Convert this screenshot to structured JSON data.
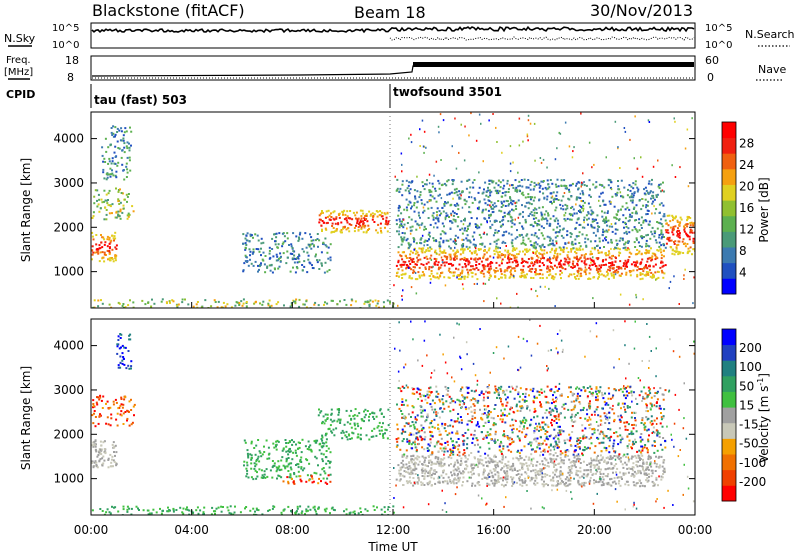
{
  "header": {
    "station": "Blackstone (fitACF)",
    "beam": "Beam 18",
    "date": "30/Nov/2013"
  },
  "strip_labels": {
    "nsky": "N.Sky",
    "nsky_ticks": [
      "10^5",
      "10^0"
    ],
    "nsearch": "N.Search",
    "nsearch_ticks": [
      "10^5",
      "10^0"
    ],
    "freq": "Freq.",
    "freq_unit": "[MHz]",
    "freq_ticks": [
      "18",
      "8"
    ],
    "nave": "Nave",
    "nave_ticks": [
      "60",
      "0"
    ],
    "cpid": "CPID",
    "cpid_segments": [
      {
        "label": "tau (fast) 503",
        "start_hour": 0
      },
      {
        "label": "twofsound 3501",
        "start_hour": 12
      }
    ]
  },
  "chart_data": [
    {
      "type": "heatmap",
      "panel": "power",
      "ylabel": "Slant Range [km]",
      "xlabel": "",
      "ylim": [
        180,
        4600
      ],
      "xlim": [
        0,
        24
      ],
      "y_ticks": [
        "4000",
        "3000",
        "2000",
        "1000"
      ],
      "y_tick_values": [
        4000,
        3000,
        2000,
        1000
      ],
      "colorbar_label": "Power [dB]",
      "colorbar_ticks": [
        "28",
        "24",
        "20",
        "16",
        "12",
        "8",
        "4"
      ],
      "colorbar_values": [
        28,
        24,
        20,
        16,
        12,
        8,
        4
      ],
      "colorscale": [
        "#0000ff",
        "#2050c0",
        "#3c7ab0",
        "#4a9a78",
        "#5cb050",
        "#90c030",
        "#e0d020",
        "#f5a010",
        "#f06010",
        "#f02010",
        "#ff0000"
      ],
      "features": [
        {
          "t0": 0.0,
          "t1": 1.0,
          "r0": 1250,
          "r1": 1900,
          "level": "high"
        },
        {
          "t0": 0.0,
          "t1": 1.7,
          "r0": 2200,
          "r1": 2900,
          "level": "mid"
        },
        {
          "t0": 0.4,
          "t1": 1.6,
          "r0": 3100,
          "r1": 4300,
          "level": "low"
        },
        {
          "t0": 6.0,
          "t1": 9.5,
          "r0": 1000,
          "r1": 1900,
          "level": "low"
        },
        {
          "t0": 9.0,
          "t1": 11.8,
          "r0": 1900,
          "r1": 2400,
          "level": "high"
        },
        {
          "t0": 12.1,
          "t1": 22.8,
          "r0": 850,
          "r1": 1550,
          "level": "high"
        },
        {
          "t0": 12.1,
          "t1": 22.8,
          "r0": 1550,
          "r1": 3100,
          "level": "low"
        },
        {
          "t0": 22.8,
          "t1": 24.0,
          "r0": 1400,
          "r1": 2300,
          "level": "high"
        },
        {
          "t0": 0.0,
          "t1": 12.0,
          "r0": 200,
          "r1": 400,
          "level": "mid"
        }
      ]
    },
    {
      "type": "heatmap",
      "panel": "velocity",
      "ylabel": "Slant Range [km]",
      "xlabel": "Time UT",
      "ylim": [
        180,
        4600
      ],
      "xlim": [
        0,
        24
      ],
      "y_ticks": [
        "4000",
        "3000",
        "2000",
        "1000"
      ],
      "y_tick_values": [
        4000,
        3000,
        2000,
        1000
      ],
      "x_ticks": [
        "00:00",
        "04:00",
        "08:00",
        "12:00",
        "16:00",
        "20:00",
        "00:00"
      ],
      "x_tick_values": [
        0,
        4,
        8,
        12,
        16,
        20,
        24
      ],
      "colorbar_label": "Velocity [m s",
      "colorbar_sup": "-1",
      "colorbar_close": "]",
      "colorbar_ticks": [
        "200",
        "100",
        "50",
        "15",
        "-15",
        "-50",
        "-100",
        "-200"
      ],
      "colorbar_values": [
        200,
        100,
        50,
        15,
        -15,
        -50,
        -100,
        -200
      ],
      "colorscale": [
        "#ff0000",
        "#f04000",
        "#f07000",
        "#f5a000",
        "#c8c8b8",
        "#a0a0a0",
        "#40c040",
        "#30a060",
        "#208080",
        "#2040c0",
        "#0000ff"
      ],
      "features": [
        {
          "t0": 0.0,
          "t1": 1.0,
          "r0": 1250,
          "r1": 1900,
          "level": "zero"
        },
        {
          "t0": 0.0,
          "t1": 1.7,
          "r0": 2200,
          "r1": 2900,
          "level": "away"
        },
        {
          "t0": 1.0,
          "t1": 1.6,
          "r0": 3500,
          "r1": 4300,
          "level": "toward"
        },
        {
          "t0": 6.0,
          "t1": 9.5,
          "r0": 1000,
          "r1": 1900,
          "level": "toward_low"
        },
        {
          "t0": 7.5,
          "t1": 9.5,
          "r0": 900,
          "r1": 1100,
          "level": "away"
        },
        {
          "t0": 9.0,
          "t1": 11.8,
          "r0": 1900,
          "r1": 2600,
          "level": "toward_low"
        },
        {
          "t0": 12.1,
          "t1": 22.8,
          "r0": 850,
          "r1": 1550,
          "level": "zero"
        },
        {
          "t0": 12.1,
          "t1": 22.8,
          "r0": 1550,
          "r1": 3100,
          "level": "mixed"
        },
        {
          "t0": 0.0,
          "t1": 12.0,
          "r0": 200,
          "r1": 400,
          "level": "toward_low"
        }
      ]
    }
  ]
}
